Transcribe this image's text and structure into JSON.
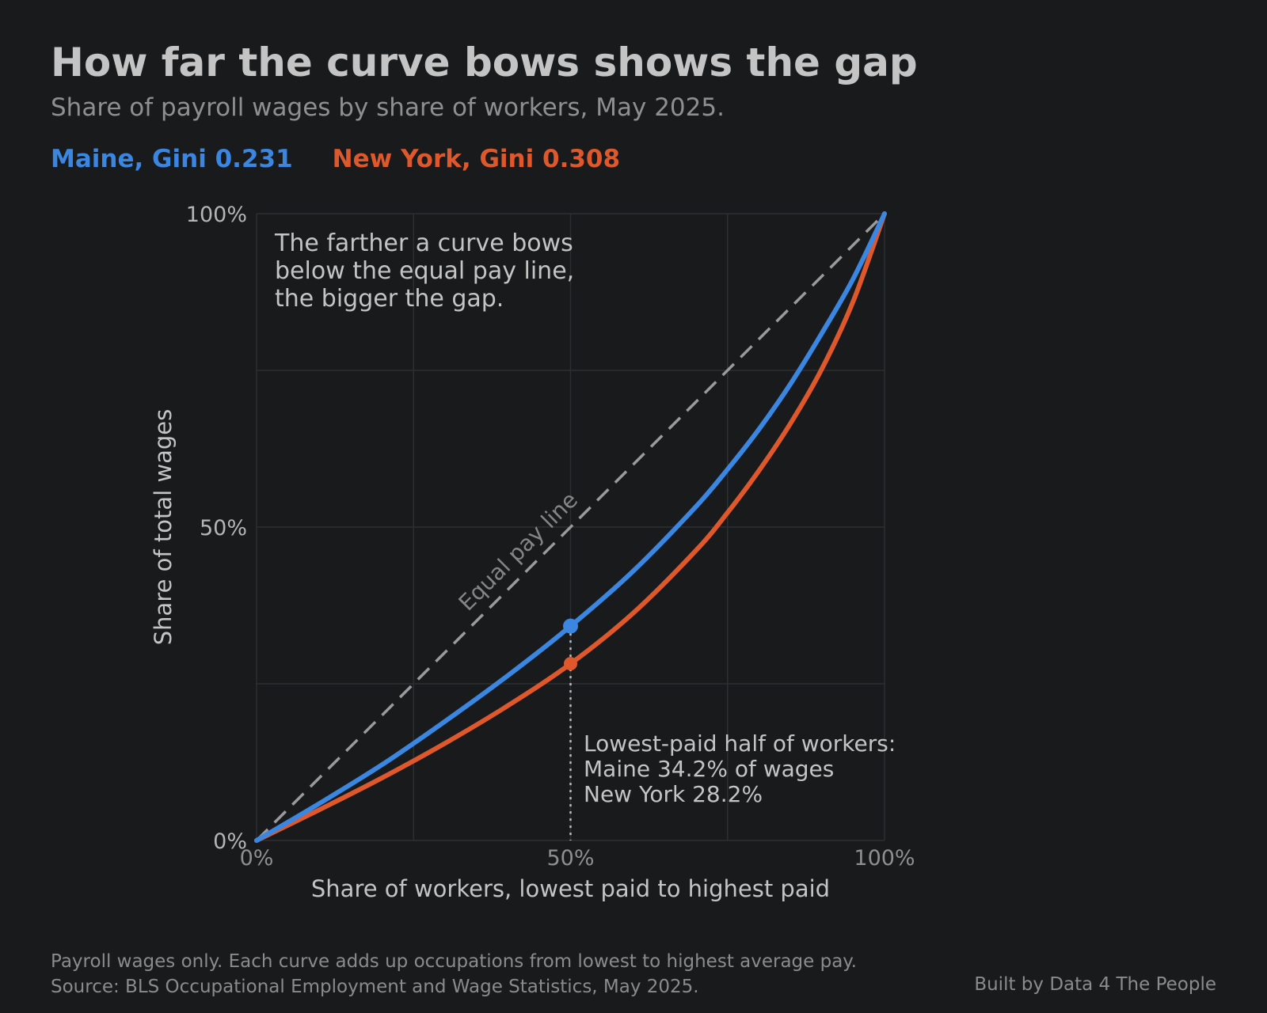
{
  "title": "How far the curve bows shows the gap",
  "subtitle": "Share of payroll wages by share of workers, May 2025.",
  "legend": [
    {
      "label": "Maine, Gini 0.231",
      "color": "#3a86e0"
    },
    {
      "label": "New York, Gini 0.308",
      "color": "#de582c"
    }
  ],
  "annotation": {
    "lines": [
      "The farther a curve bows",
      "below the equal pay line,",
      "the bigger the gap."
    ]
  },
  "equal_line_label": "Equal pay line",
  "callout": {
    "lines": [
      "Lowest-paid half of workers:",
      "Maine 34.2% of wages",
      "New York 28.2%"
    ]
  },
  "chart_data": {
    "type": "line",
    "xlabel": "Share of workers, lowest paid to highest paid",
    "ylabel": "Share of total wages",
    "xlim": [
      0,
      100
    ],
    "ylim": [
      0,
      100
    ],
    "x_ticks": [
      0,
      50,
      100
    ],
    "x_tick_labels": [
      "0%",
      "50%",
      "100%"
    ],
    "y_ticks": [
      0,
      50,
      100
    ],
    "y_tick_labels": [
      "0%",
      "50%",
      "100%"
    ],
    "grid": true,
    "series": [
      {
        "name": "Maine, Gini 0.231",
        "color": "#3a86e0",
        "x": [
          0,
          10,
          20,
          30,
          40,
          50,
          60,
          70,
          75,
          80,
          85,
          90,
          95,
          100
        ],
        "y": [
          0,
          5.9,
          12.1,
          19.0,
          26.3,
          34.2,
          43.0,
          53.3,
          59.2,
          65.6,
          72.8,
          80.9,
          89.6,
          100
        ]
      },
      {
        "name": "New York, Gini 0.308",
        "color": "#de582c",
        "x": [
          0,
          10,
          20,
          30,
          40,
          50,
          60,
          70,
          75,
          80,
          85,
          90,
          95,
          100
        ],
        "y": [
          0,
          4.9,
          10.0,
          15.5,
          21.5,
          28.2,
          36.3,
          46.3,
          52.3,
          59.0,
          66.5,
          75.2,
          86.0,
          100
        ]
      }
    ],
    "reference_line": {
      "label": "Equal pay line",
      "x": [
        0,
        100
      ],
      "y": [
        0,
        100
      ],
      "style": "dashed"
    },
    "highlight": {
      "x": 50,
      "values": [
        34.2,
        28.2
      ]
    }
  },
  "footnote": [
    "Payroll wages only. Each curve adds up occupations from lowest to highest average pay.",
    "Source: BLS Occupational Employment and Wage Statistics, May 2025."
  ],
  "credit": "Built by Data 4 The People"
}
